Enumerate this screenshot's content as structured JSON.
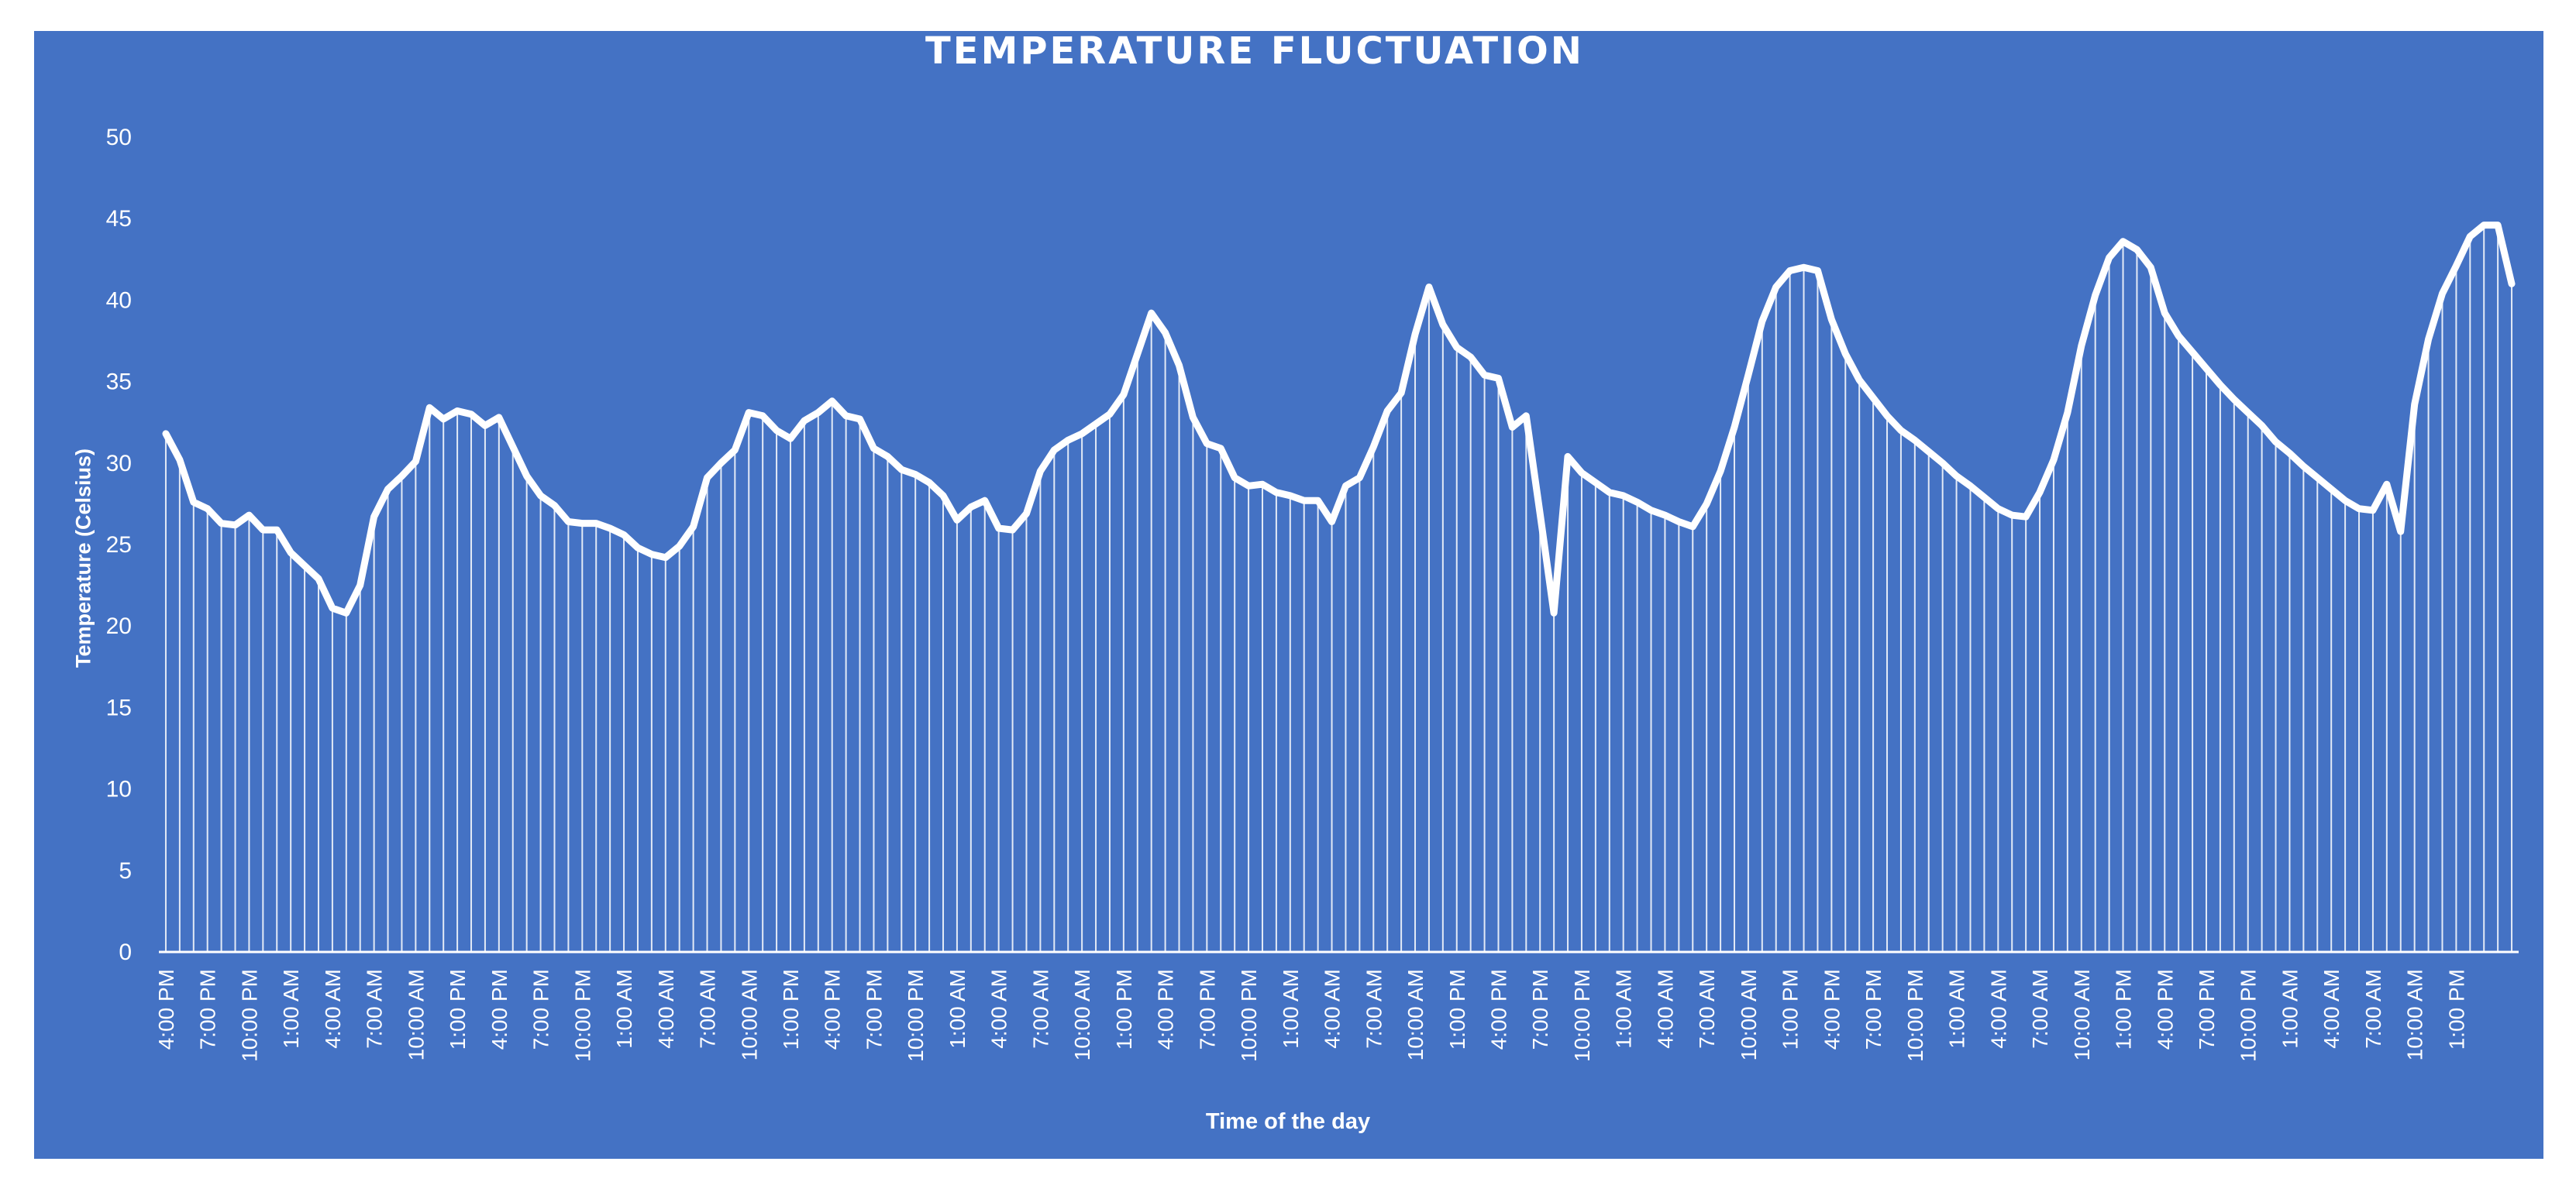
{
  "chart_data": {
    "type": "line",
    "title": "TEMPERATURE FLUCTUATION",
    "xlabel": "Time of the day",
    "ylabel": "Temperature (Celsius)",
    "ylim": [
      0,
      50
    ],
    "y_ticks": [
      0,
      5,
      10,
      15,
      20,
      25,
      30,
      35,
      40,
      45,
      50
    ],
    "x_tick_labels": [
      "4:00 PM",
      "7:00 PM",
      "10:00 PM",
      "1:00 AM",
      "4:00 AM",
      "7:00 AM",
      "10:00 AM",
      "1:00 PM",
      "4:00 PM",
      "7:00 PM",
      "10:00 PM",
      "1:00 AM",
      "4:00 AM",
      "7:00 AM",
      "10:00 AM",
      "1:00 PM",
      "4:00 PM",
      "7:00 PM",
      "10:00 PM",
      "1:00 AM",
      "4:00 AM",
      "7:00 AM",
      "10:00 AM",
      "1:00 PM",
      "4:00 PM",
      "7:00 PM",
      "10:00 PM",
      "1:00 AM",
      "4:00 AM",
      "7:00 AM",
      "10:00 AM",
      "1:00 PM",
      "4:00 PM",
      "7:00 PM",
      "10:00 PM",
      "1:00 AM",
      "4:00 AM",
      "7:00 AM",
      "10:00 AM",
      "1:00 PM",
      "4:00 PM",
      "7:00 PM",
      "10:00 PM",
      "1:00 AM",
      "4:00 AM",
      "7:00 AM",
      "10:00 AM",
      "1:00 PM",
      "4:00 PM",
      "7:00 PM",
      "10:00 PM",
      "1:00 AM",
      "4:00 AM",
      "7:00 AM",
      "10:00 AM",
      "1:00 PM"
    ],
    "values": [
      31.8,
      30.2,
      27.6,
      27.2,
      26.3,
      26.2,
      26.8,
      25.9,
      25.9,
      24.5,
      23.7,
      22.9,
      21.1,
      20.8,
      22.5,
      26.7,
      28.4,
      29.2,
      30.1,
      33.4,
      32.7,
      33.2,
      33.0,
      32.3,
      32.8,
      31.0,
      29.2,
      28.0,
      27.4,
      26.4,
      26.3,
      26.3,
      26.0,
      25.6,
      24.8,
      24.4,
      24.2,
      24.9,
      26.1,
      29.1,
      30.0,
      30.8,
      33.1,
      32.9,
      32.0,
      31.5,
      32.6,
      33.1,
      33.8,
      32.9,
      32.7,
      30.9,
      30.4,
      29.6,
      29.3,
      28.8,
      28.0,
      26.5,
      27.3,
      27.7,
      26.0,
      25.9,
      26.9,
      29.5,
      30.8,
      31.4,
      31.8,
      32.4,
      33.0,
      34.2,
      36.7,
      39.2,
      38.0,
      36.0,
      32.8,
      31.2,
      30.9,
      29.1,
      28.6,
      28.7,
      28.2,
      28.0,
      27.7,
      27.7,
      26.4,
      28.6,
      29.1,
      31.0,
      33.2,
      34.3,
      37.9,
      40.8,
      38.5,
      37.1,
      36.5,
      35.4,
      35.2,
      32.2,
      32.9,
      26.9,
      20.8,
      30.4,
      29.4,
      28.8,
      28.2,
      28.0,
      27.6,
      27.1,
      26.8,
      26.4,
      26.1,
      27.5,
      29.5,
      32.2,
      35.4,
      38.7,
      40.8,
      41.8,
      42.0,
      41.8,
      38.8,
      36.7,
      35.1,
      34.0,
      32.9,
      32.0,
      31.4,
      30.7,
      30.0,
      29.2,
      28.6,
      27.9,
      27.2,
      26.8,
      26.7,
      28.2,
      30.2,
      33.1,
      37.2,
      40.3,
      42.6,
      43.6,
      43.1,
      42.0,
      39.2,
      37.8,
      36.8,
      35.8,
      34.8,
      33.9,
      33.1,
      32.3,
      31.3,
      30.6,
      29.8,
      29.1,
      28.4,
      27.7,
      27.2,
      27.1,
      28.7,
      25.8,
      33.6,
      37.6,
      40.4,
      42.1,
      43.9,
      44.6,
      44.6,
      41.0
    ]
  }
}
